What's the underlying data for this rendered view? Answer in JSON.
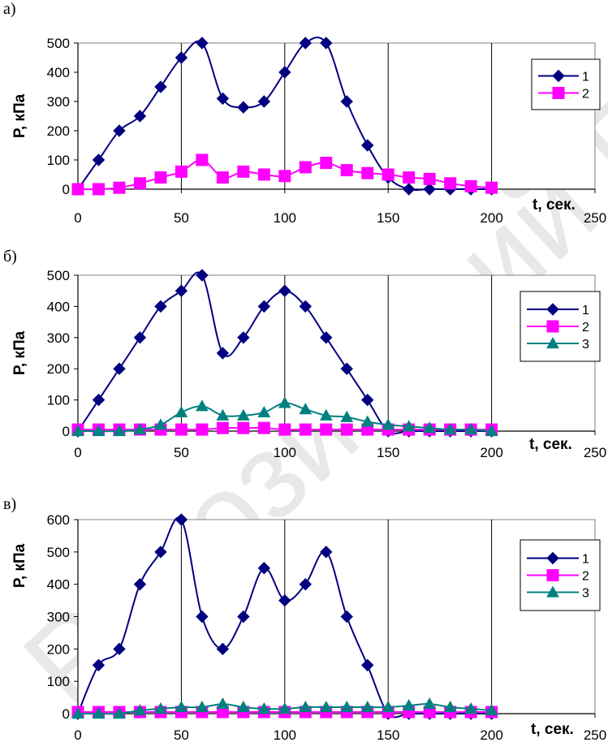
{
  "watermark": {
    "text": "Репозиторий БНТУ",
    "color": "#e6e6e6"
  },
  "chart_data": [
    {
      "type": "line",
      "panel_label": "а)",
      "xlabel": "t, сек.",
      "ylabel": "Р, кПа",
      "xlim": [
        0,
        250
      ],
      "ylim": [
        0,
        500
      ],
      "xticks": [
        0,
        50,
        100,
        150,
        200,
        250
      ],
      "yticks": [
        0,
        100,
        200,
        300,
        400,
        500
      ],
      "grid": "vertical",
      "legend_position": "right",
      "series": [
        {
          "name": "1",
          "color": "#000080",
          "marker": "diamond",
          "x": [
            0,
            10,
            20,
            30,
            40,
            50,
            60,
            70,
            80,
            90,
            100,
            110,
            120,
            130,
            140,
            150,
            160,
            170,
            180,
            190,
            200
          ],
          "y": [
            0,
            100,
            200,
            250,
            350,
            450,
            500,
            310,
            280,
            300,
            400,
            500,
            500,
            300,
            150,
            40,
            0,
            0,
            0,
            0,
            0
          ]
        },
        {
          "name": "2",
          "color": "#ff00ff",
          "marker": "square",
          "x": [
            0,
            10,
            20,
            30,
            40,
            50,
            60,
            70,
            80,
            90,
            100,
            110,
            120,
            130,
            140,
            150,
            160,
            170,
            180,
            190,
            200
          ],
          "y": [
            0,
            0,
            5,
            20,
            40,
            60,
            100,
            40,
            60,
            50,
            45,
            75,
            90,
            65,
            55,
            50,
            40,
            35,
            20,
            10,
            5
          ]
        }
      ]
    },
    {
      "type": "line",
      "panel_label": "б)",
      "xlabel": "t, сек.",
      "ylabel": "Р, кПа",
      "xlim": [
        0,
        250
      ],
      "ylim": [
        0,
        500
      ],
      "xticks": [
        0,
        50,
        100,
        150,
        200,
        250
      ],
      "yticks": [
        0,
        100,
        200,
        300,
        400,
        500
      ],
      "grid": "vertical",
      "legend_position": "right",
      "series": [
        {
          "name": "1",
          "color": "#000080",
          "marker": "diamond",
          "x": [
            0,
            10,
            20,
            30,
            40,
            50,
            60,
            70,
            80,
            90,
            100,
            110,
            120,
            130,
            140,
            150,
            160,
            170,
            180,
            190,
            200
          ],
          "y": [
            0,
            100,
            200,
            300,
            400,
            450,
            500,
            250,
            300,
            400,
            450,
            400,
            300,
            200,
            100,
            0,
            0,
            0,
            0,
            0,
            0
          ]
        },
        {
          "name": "2",
          "color": "#ff00ff",
          "marker": "square",
          "x": [
            0,
            10,
            20,
            30,
            40,
            50,
            60,
            70,
            80,
            90,
            100,
            110,
            120,
            130,
            140,
            150,
            160,
            170,
            180,
            190,
            200
          ],
          "y": [
            5,
            5,
            5,
            5,
            5,
            5,
            5,
            10,
            10,
            10,
            5,
            5,
            5,
            5,
            5,
            5,
            5,
            5,
            5,
            5,
            5
          ]
        },
        {
          "name": "3",
          "color": "#008080",
          "marker": "triangle",
          "x": [
            0,
            10,
            20,
            30,
            40,
            50,
            60,
            70,
            80,
            90,
            100,
            110,
            120,
            130,
            140,
            150,
            160,
            170,
            180,
            190,
            200
          ],
          "y": [
            0,
            0,
            0,
            5,
            20,
            60,
            80,
            50,
            50,
            60,
            90,
            70,
            50,
            45,
            30,
            20,
            15,
            10,
            5,
            5,
            0
          ]
        }
      ]
    },
    {
      "type": "line",
      "panel_label": "в)",
      "xlabel": "t, сек.",
      "ylabel": "Р, кПа",
      "xlim": [
        0,
        250
      ],
      "ylim": [
        0,
        600
      ],
      "xticks": [
        0,
        50,
        100,
        150,
        200,
        250
      ],
      "yticks": [
        0,
        100,
        200,
        300,
        400,
        500,
        600
      ],
      "grid": "vertical",
      "legend_position": "right",
      "series": [
        {
          "name": "1",
          "color": "#000080",
          "marker": "diamond",
          "x": [
            0,
            10,
            20,
            30,
            40,
            50,
            60,
            70,
            80,
            90,
            100,
            110,
            120,
            130,
            140,
            150,
            160,
            170,
            180,
            190,
            200
          ],
          "y": [
            0,
            150,
            200,
            400,
            500,
            600,
            300,
            200,
            300,
            450,
            350,
            400,
            500,
            300,
            150,
            0,
            0,
            0,
            0,
            0,
            0
          ]
        },
        {
          "name": "2",
          "color": "#ff00ff",
          "marker": "square",
          "x": [
            0,
            10,
            20,
            30,
            40,
            50,
            60,
            70,
            80,
            90,
            100,
            110,
            120,
            130,
            140,
            150,
            160,
            170,
            180,
            190,
            200
          ],
          "y": [
            5,
            5,
            5,
            5,
            5,
            5,
            5,
            5,
            5,
            5,
            5,
            5,
            5,
            5,
            5,
            5,
            5,
            5,
            5,
            5,
            5
          ]
        },
        {
          "name": "3",
          "color": "#008080",
          "marker": "triangle",
          "x": [
            0,
            10,
            20,
            30,
            40,
            50,
            60,
            70,
            80,
            90,
            100,
            110,
            120,
            130,
            140,
            150,
            160,
            170,
            180,
            190,
            200
          ],
          "y": [
            0,
            0,
            0,
            10,
            15,
            20,
            20,
            30,
            20,
            15,
            15,
            20,
            20,
            20,
            20,
            20,
            25,
            30,
            20,
            15,
            10
          ]
        }
      ]
    }
  ]
}
